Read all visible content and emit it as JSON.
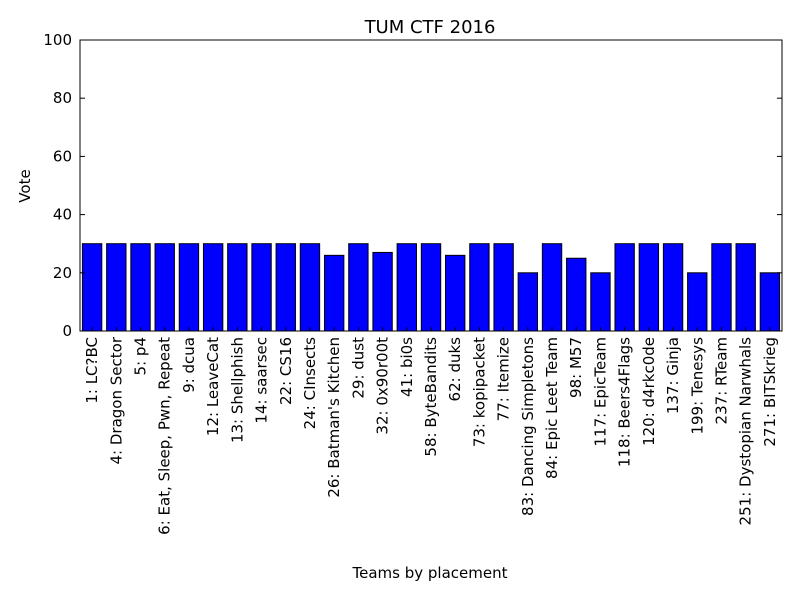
{
  "chart_data": {
    "type": "bar",
    "title": "TUM CTF 2016",
    "xlabel": "Teams by placement",
    "ylabel": "Vote",
    "ylim": [
      0,
      100
    ],
    "yticks": [
      0,
      20,
      40,
      60,
      80,
      100
    ],
    "grid": false,
    "bar_color": "#0000ff",
    "categories": [
      "1: LC?BC",
      "4: Dragon Sector",
      "5: p4",
      "6: Eat, Sleep, Pwn, Repeat",
      "9: dcua",
      "12: LeaveCat",
      "13: Shellphish",
      "14: saarsec",
      "22: CS16",
      "24: CInsects",
      "26: Batman's Kitchen",
      "29: dust",
      "32: 0x90r00t",
      "41: bi0s",
      "58: ByteBandits",
      "62: duks",
      "73: kopipacket",
      "77: Itemize",
      "83: Dancing Simpletons",
      "84: Epic Leet Team",
      "98: M57",
      "117: EpicTeam",
      "118: Beers4Flags",
      "120: d4rkc0de",
      "137: Ginja",
      "199: Tenesys",
      "237: RTeam",
      "251: Dystopian Narwhals",
      "271: BITSkrieg"
    ],
    "values": [
      30,
      30,
      30,
      30,
      30,
      30,
      30,
      30,
      30,
      30,
      26,
      30,
      27,
      30,
      30,
      26,
      30,
      30,
      20,
      30,
      25,
      20,
      30,
      30,
      30,
      20,
      30,
      30,
      20
    ]
  }
}
